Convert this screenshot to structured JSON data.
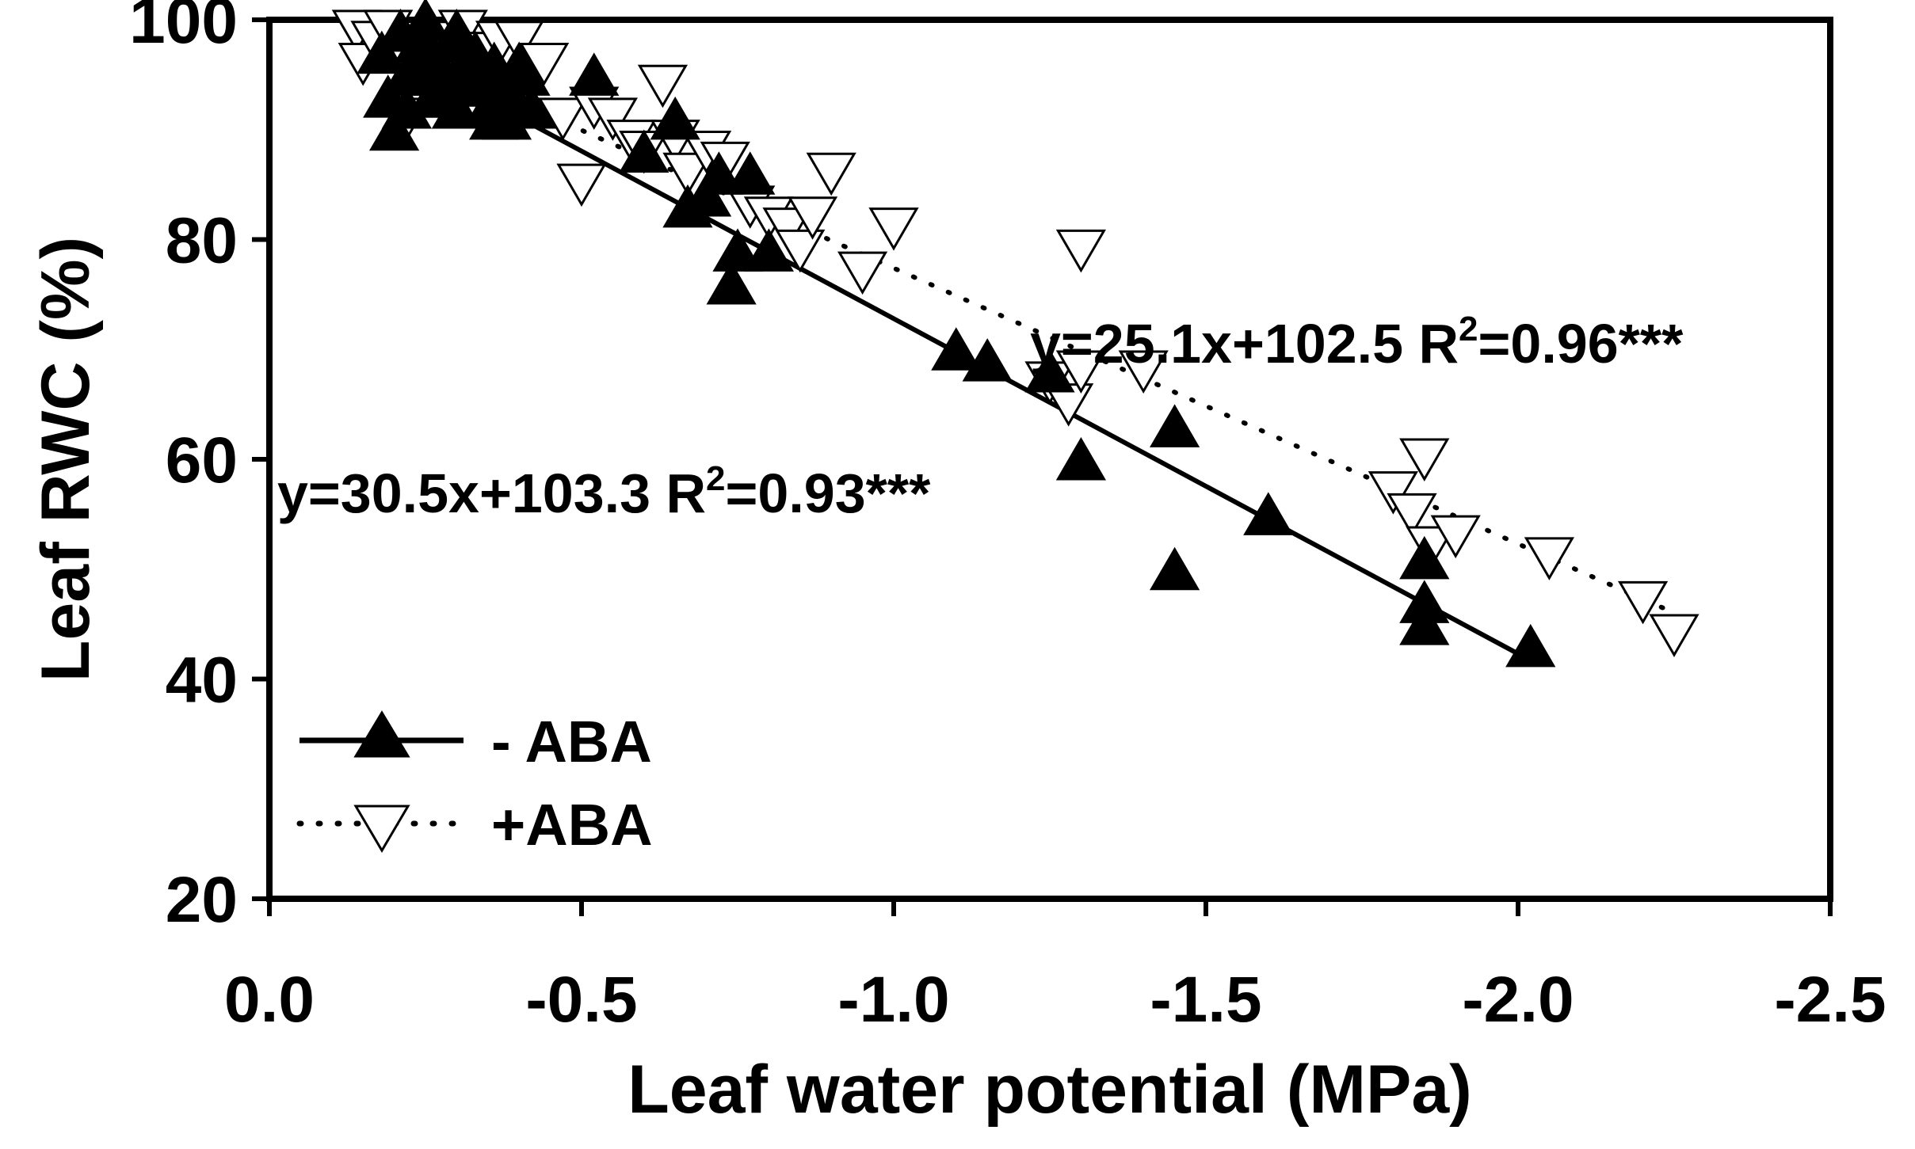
{
  "chart_data": {
    "type": "scatter",
    "title": "",
    "xlabel": "Leaf water potential (MPa)",
    "ylabel": "Leaf RWC (%)",
    "xlim": [
      0,
      -2.5
    ],
    "ylim": [
      20,
      100
    ],
    "x_ticks": [
      0,
      -0.5,
      -1.0,
      -1.5,
      -2.0,
      -2.5
    ],
    "x_tick_labels": [
      "0.0",
      "-0.5",
      "-1.0",
      "-1.5",
      "-2.0",
      "-2.5"
    ],
    "y_ticks": [
      20,
      40,
      60,
      80,
      100
    ],
    "y_tick_labels": [
      "20",
      "40",
      "60",
      "80",
      "100"
    ],
    "grid": false,
    "legend_position": "bottom-left",
    "series": [
      {
        "name": "- ABA",
        "marker": "filled-triangle-up",
        "color": "#000000",
        "line_style": "solid",
        "fit": {
          "x_range": [
            -0.36,
            -2.02
          ],
          "slope": 30.5,
          "intercept": 103.3
        },
        "points": [
          [
            -0.18,
            97
          ],
          [
            -0.19,
            93
          ],
          [
            -0.2,
            90
          ],
          [
            -0.21,
            99
          ],
          [
            -0.22,
            95
          ],
          [
            -0.23,
            96
          ],
          [
            -0.24,
            98
          ],
          [
            -0.25,
            100
          ],
          [
            -0.26,
            97
          ],
          [
            -0.27,
            95
          ],
          [
            -0.28,
            93
          ],
          [
            -0.29,
            98
          ],
          [
            -0.3,
            99
          ],
          [
            -0.31,
            96
          ],
          [
            -0.32,
            94
          ],
          [
            -0.33,
            97
          ],
          [
            -0.34,
            95
          ],
          [
            -0.35,
            92
          ],
          [
            -0.36,
            96
          ],
          [
            -0.37,
            94
          ],
          [
            -0.38,
            91
          ],
          [
            -0.39,
            93
          ],
          [
            -0.4,
            96
          ],
          [
            -0.41,
            95
          ],
          [
            -0.42,
            92
          ],
          [
            -0.3,
            92
          ],
          [
            -0.26,
            93
          ],
          [
            -0.22,
            92
          ],
          [
            -0.36,
            91
          ],
          [
            -0.52,
            95
          ],
          [
            -0.6,
            88
          ],
          [
            -0.65,
            91
          ],
          [
            -0.67,
            83
          ],
          [
            -0.7,
            84
          ],
          [
            -0.72,
            86
          ],
          [
            -0.75,
            79
          ],
          [
            -0.74,
            76
          ],
          [
            -0.77,
            86
          ],
          [
            -0.8,
            79
          ],
          [
            -1.1,
            70
          ],
          [
            -1.15,
            69
          ],
          [
            -1.25,
            68
          ],
          [
            -1.3,
            60
          ],
          [
            -1.45,
            63
          ],
          [
            -1.45,
            50
          ],
          [
            -1.6,
            55
          ],
          [
            -1.85,
            51
          ],
          [
            -1.85,
            47
          ],
          [
            -1.85,
            45
          ],
          [
            -2.02,
            43
          ]
        ]
      },
      {
        "name": "+ABA",
        "marker": "open-triangle-down",
        "color": "#ffffff",
        "line_style": "dotted",
        "fit": {
          "x_range": [
            -0.14,
            -2.25
          ],
          "slope": 25.1,
          "intercept": 102.5
        },
        "points": [
          [
            -0.14,
            99
          ],
          [
            -0.15,
            96
          ],
          [
            -0.17,
            98
          ],
          [
            -0.19,
            99
          ],
          [
            -0.22,
            91
          ],
          [
            -0.24,
            97
          ],
          [
            -0.27,
            98
          ],
          [
            -0.31,
            99
          ],
          [
            -0.34,
            97
          ],
          [
            -0.37,
            98
          ],
          [
            -0.4,
            98
          ],
          [
            -0.44,
            96
          ],
          [
            -0.47,
            91
          ],
          [
            -0.5,
            85
          ],
          [
            -0.52,
            92
          ],
          [
            -0.55,
            91
          ],
          [
            -0.58,
            89
          ],
          [
            -0.6,
            88
          ],
          [
            -0.63,
            94
          ],
          [
            -0.65,
            89
          ],
          [
            -0.67,
            86
          ],
          [
            -0.7,
            88
          ],
          [
            -0.73,
            87
          ],
          [
            -0.77,
            83
          ],
          [
            -0.8,
            82
          ],
          [
            -0.83,
            81
          ],
          [
            -0.85,
            79
          ],
          [
            -0.87,
            82
          ],
          [
            -0.9,
            86
          ],
          [
            -0.95,
            77
          ],
          [
            -1.0,
            81
          ],
          [
            -1.25,
            67
          ],
          [
            -1.28,
            65
          ],
          [
            -1.3,
            79
          ],
          [
            -1.3,
            68
          ],
          [
            -1.4,
            68
          ],
          [
            -1.8,
            57
          ],
          [
            -1.83,
            55
          ],
          [
            -1.85,
            60
          ],
          [
            -1.86,
            52
          ],
          [
            -1.9,
            53
          ],
          [
            -2.05,
            51
          ],
          [
            -2.2,
            47
          ],
          [
            -2.25,
            44
          ]
        ]
      }
    ],
    "annotations": [
      {
        "text": "y=25.1x+102.5 R",
        "sup": "2",
        "suffix": "=0.96***"
      },
      {
        "text": "y=30.5x+103.3 R",
        "sup": "2",
        "suffix": "=0.93***"
      }
    ]
  }
}
